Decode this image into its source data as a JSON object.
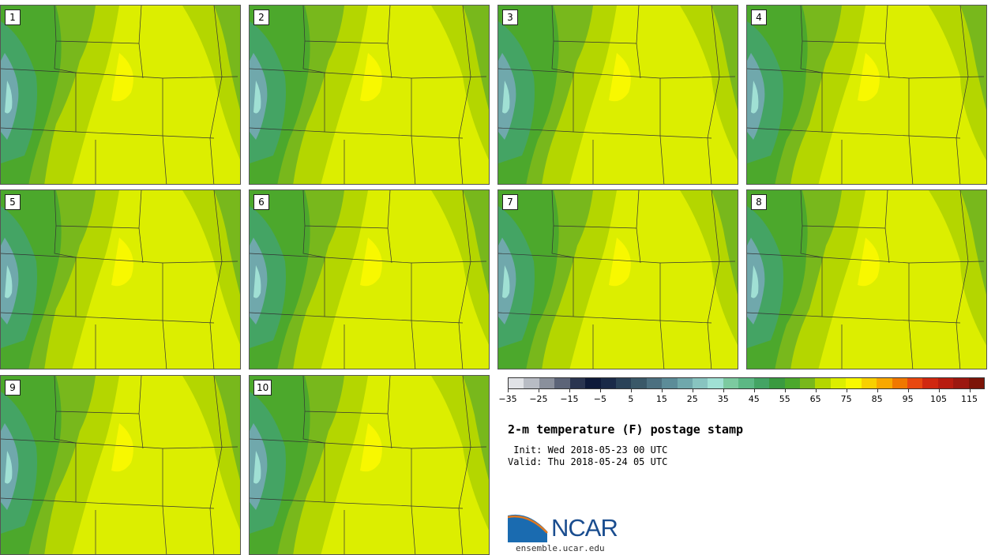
{
  "panels": [
    {
      "label": "1"
    },
    {
      "label": "2"
    },
    {
      "label": "3"
    },
    {
      "label": "4"
    },
    {
      "label": "5"
    },
    {
      "label": "6"
    },
    {
      "label": "7"
    },
    {
      "label": "8"
    },
    {
      "label": "9"
    },
    {
      "label": "10"
    }
  ],
  "colorbar": {
    "colors": [
      "#e0e2e6",
      "#b8bcc4",
      "#8a909c",
      "#5c6478",
      "#2a3550",
      "#0e1a3a",
      "#1a2a48",
      "#2a4258",
      "#3a5868",
      "#4c7080",
      "#5c8c98",
      "#70a8ac",
      "#88c4c0",
      "#a0e0d4",
      "#7ccaa0",
      "#5cb884",
      "#44a464",
      "#3a9a40",
      "#4ca82c",
      "#78b81c",
      "#b4d600",
      "#dcee00",
      "#f8f800",
      "#f8d000",
      "#f8a800",
      "#f07800",
      "#e84810",
      "#d02810",
      "#b81c10",
      "#9c1810",
      "#7c1408"
    ],
    "tick_labels": [
      "−35",
      "−25",
      "−15",
      "−5",
      "5",
      "15",
      "25",
      "35",
      "45",
      "55",
      "65",
      "75",
      "85",
      "95",
      "105",
      "115"
    ],
    "range": [
      -35,
      120
    ]
  },
  "title": "2-m temperature (F) postage stamp",
  "init": " Init: Wed 2018-05-23 00 UTC",
  "valid": "Valid: Thu 2018-05-24 05 UTC",
  "logo": {
    "text": "NCAR",
    "url": "ensemble.ucar.edu",
    "colors": {
      "blue": "#1a4d8f",
      "orange": "#e07820"
    }
  }
}
